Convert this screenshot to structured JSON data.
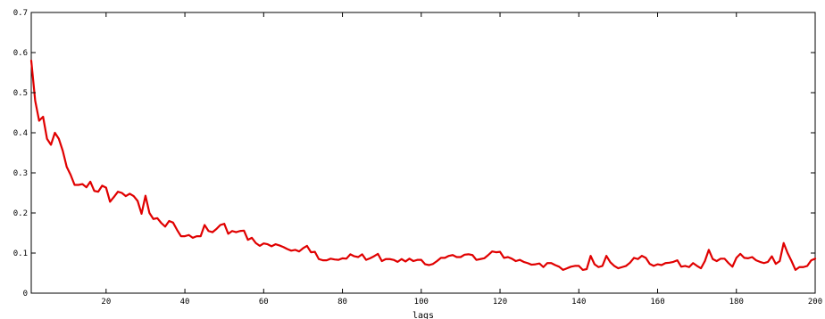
{
  "chart_data": {
    "type": "line",
    "title": "",
    "xlabel": "lags",
    "ylabel": "",
    "xlim": [
      1,
      200
    ],
    "ylim": [
      0,
      0.7
    ],
    "x_ticks": [
      20,
      40,
      60,
      80,
      100,
      120,
      140,
      160,
      180,
      200
    ],
    "y_ticks": [
      0,
      0.1,
      0.2,
      0.3,
      0.4,
      0.5,
      0.6,
      0.7
    ],
    "y_tick_labels": [
      "0",
      "0.1",
      "0.2",
      "0.3",
      "0.4",
      "0.5",
      "0.6",
      "0.7"
    ],
    "grid": false,
    "line_color": "#e00000",
    "series": [
      {
        "x_start": 1,
        "x_step": 1,
        "values": [
          0.58,
          0.48,
          0.43,
          0.44,
          0.385,
          0.37,
          0.4,
          0.385,
          0.355,
          0.315,
          0.295,
          0.27,
          0.27,
          0.272,
          0.264,
          0.278,
          0.255,
          0.253,
          0.268,
          0.263,
          0.228,
          0.24,
          0.253,
          0.25,
          0.242,
          0.248,
          0.242,
          0.23,
          0.198,
          0.243,
          0.2,
          0.185,
          0.187,
          0.175,
          0.166,
          0.18,
          0.176,
          0.158,
          0.142,
          0.142,
          0.145,
          0.138,
          0.142,
          0.142,
          0.17,
          0.155,
          0.152,
          0.16,
          0.17,
          0.173,
          0.148,
          0.155,
          0.152,
          0.155,
          0.156,
          0.133,
          0.138,
          0.125,
          0.118,
          0.124,
          0.122,
          0.117,
          0.122,
          0.119,
          0.115,
          0.11,
          0.106,
          0.108,
          0.104,
          0.112,
          0.118,
          0.102,
          0.103,
          0.085,
          0.082,
          0.082,
          0.086,
          0.084,
          0.083,
          0.087,
          0.086,
          0.097,
          0.092,
          0.09,
          0.097,
          0.083,
          0.087,
          0.092,
          0.098,
          0.08,
          0.085,
          0.085,
          0.083,
          0.078,
          0.085,
          0.079,
          0.086,
          0.08,
          0.083,
          0.083,
          0.072,
          0.07,
          0.073,
          0.08,
          0.088,
          0.088,
          0.093,
          0.095,
          0.09,
          0.09,
          0.096,
          0.097,
          0.095,
          0.083,
          0.085,
          0.087,
          0.095,
          0.104,
          0.102,
          0.103,
          0.088,
          0.09,
          0.086,
          0.08,
          0.083,
          0.078,
          0.075,
          0.071,
          0.072,
          0.074,
          0.065,
          0.075,
          0.075,
          0.07,
          0.066,
          0.058,
          0.062,
          0.066,
          0.068,
          0.068,
          0.058,
          0.06,
          0.093,
          0.072,
          0.065,
          0.068,
          0.093,
          0.077,
          0.068,
          0.062,
          0.065,
          0.068,
          0.076,
          0.088,
          0.085,
          0.093,
          0.088,
          0.073,
          0.068,
          0.072,
          0.07,
          0.075,
          0.076,
          0.078,
          0.082,
          0.066,
          0.068,
          0.065,
          0.075,
          0.068,
          0.062,
          0.08,
          0.108,
          0.085,
          0.08,
          0.086,
          0.086,
          0.075,
          0.066,
          0.088,
          0.098,
          0.088,
          0.087,
          0.09,
          0.082,
          0.078,
          0.075,
          0.078,
          0.092,
          0.073,
          0.08,
          0.125,
          0.1,
          0.08,
          0.058,
          0.065,
          0.065,
          0.068,
          0.082,
          0.086
        ]
      }
    ]
  }
}
